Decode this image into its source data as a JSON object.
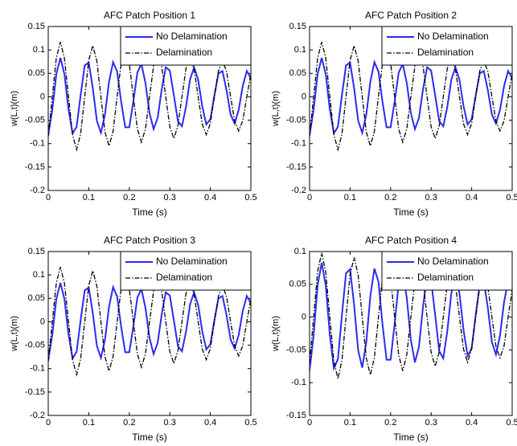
{
  "chart_data": [
    {
      "type": "line",
      "title": "AFC Patch Position 1",
      "xlabel": "Time (s)",
      "ylabel": "w(L,t)(m)",
      "grid": false,
      "legend": "upper right",
      "x": [
        0,
        0.01,
        0.02,
        0.03,
        0.04,
        0.05,
        0.06,
        0.07,
        0.08,
        0.09,
        0.1,
        0.11,
        0.12,
        0.13,
        0.14,
        0.15,
        0.16,
        0.17,
        0.18,
        0.19,
        0.2,
        0.21,
        0.22,
        0.23,
        0.24,
        0.25,
        0.26,
        0.27,
        0.28,
        0.29,
        0.3,
        0.31,
        0.32,
        0.33,
        0.34,
        0.35,
        0.36,
        0.37,
        0.38,
        0.39,
        0.4,
        0.41,
        0.42,
        0.43,
        0.44,
        0.45,
        0.46,
        0.47,
        0.48,
        0.49,
        0.5
      ],
      "xlim": [
        0,
        0.5
      ],
      "xticks": [
        0,
        0.1,
        0.2,
        0.3,
        0.4,
        0.5
      ],
      "ylim": [
        -0.2,
        0.15
      ],
      "yticks": [
        -0.2,
        -0.15,
        -0.1,
        -0.05,
        0,
        0.05,
        0.1,
        0.15
      ],
      "series": [
        {
          "name": "No Delamination",
          "color": "#2b2bef",
          "linestyle": "solid",
          "values": [
            -0.082,
            -0.028,
            0.049,
            0.083,
            0.048,
            -0.027,
            -0.078,
            -0.064,
            0.004,
            0.067,
            0.073,
            0.018,
            -0.051,
            -0.077,
            -0.038,
            0.032,
            0.074,
            0.054,
            -0.011,
            -0.065,
            -0.065,
            -0.01,
            0.052,
            0.07,
            0.029,
            -0.035,
            -0.069,
            -0.045,
            0.016,
            0.063,
            0.056,
            0.003,
            -0.052,
            -0.063,
            -0.021,
            0.037,
            0.063,
            0.036,
            -0.02,
            -0.059,
            -0.048,
            0.003,
            0.05,
            0.055,
            0.014,
            -0.038,
            -0.057,
            -0.028,
            0.023,
            0.055,
            0.04
          ]
        },
        {
          "name": "Delamination",
          "color": "#000000",
          "linestyle": "dashdot",
          "values": [
            -0.085,
            0,
            0.083,
            0.117,
            0.082,
            0,
            -0.081,
            -0.113,
            -0.079,
            0,
            0.078,
            0.109,
            0.076,
            0,
            -0.075,
            -0.105,
            -0.074,
            0,
            0.072,
            0.101,
            0.071,
            0,
            -0.069,
            -0.097,
            -0.068,
            0,
            0.066,
            0.093,
            0.065,
            0,
            -0.064,
            -0.089,
            -0.062,
            0,
            0.061,
            0.085,
            0.059,
            0,
            -0.058,
            -0.081,
            -0.057,
            0,
            0.055,
            0.077,
            0.054,
            0,
            -0.052,
            -0.073,
            -0.051,
            0,
            0.049
          ]
        }
      ]
    },
    {
      "type": "line",
      "title": "AFC Patch Position 2",
      "xlabel": "Time (s)",
      "ylabel": "w(L,t)(m)",
      "grid": false,
      "legend": "upper right",
      "x": [
        0,
        0.01,
        0.02,
        0.03,
        0.04,
        0.05,
        0.06,
        0.07,
        0.08,
        0.09,
        0.1,
        0.11,
        0.12,
        0.13,
        0.14,
        0.15,
        0.16,
        0.17,
        0.18,
        0.19,
        0.2,
        0.21,
        0.22,
        0.23,
        0.24,
        0.25,
        0.26,
        0.27,
        0.28,
        0.29,
        0.3,
        0.31,
        0.32,
        0.33,
        0.34,
        0.35,
        0.36,
        0.37,
        0.38,
        0.39,
        0.4,
        0.41,
        0.42,
        0.43,
        0.44,
        0.45,
        0.46,
        0.47,
        0.48,
        0.49,
        0.5
      ],
      "xlim": [
        0,
        0.5
      ],
      "xticks": [
        0,
        0.1,
        0.2,
        0.3,
        0.4,
        0.5
      ],
      "ylim": [
        -0.2,
        0.15
      ],
      "yticks": [
        -0.2,
        -0.15,
        -0.1,
        -0.05,
        0,
        0.05,
        0.1,
        0.15
      ],
      "series": [
        {
          "name": "No Delamination",
          "color": "#2b2bef",
          "linestyle": "solid",
          "values": [
            -0.082,
            -0.028,
            0.049,
            0.083,
            0.048,
            -0.027,
            -0.078,
            -0.064,
            0.004,
            0.067,
            0.073,
            0.018,
            -0.051,
            -0.077,
            -0.038,
            0.032,
            0.074,
            0.054,
            -0.011,
            -0.065,
            -0.065,
            -0.01,
            0.052,
            0.07,
            0.029,
            -0.035,
            -0.069,
            -0.045,
            0.016,
            0.063,
            0.056,
            0.003,
            -0.052,
            -0.063,
            -0.021,
            0.037,
            0.063,
            0.036,
            -0.02,
            -0.059,
            -0.048,
            0.003,
            0.05,
            0.055,
            0.014,
            -0.038,
            -0.057,
            -0.028,
            0.023,
            0.055,
            0.04
          ]
        },
        {
          "name": "Delamination",
          "color": "#000000",
          "linestyle": "dashdot",
          "values": [
            -0.085,
            0,
            0.083,
            0.117,
            0.082,
            0,
            -0.081,
            -0.113,
            -0.079,
            0,
            0.078,
            0.109,
            0.076,
            0,
            -0.075,
            -0.105,
            -0.074,
            0,
            0.072,
            0.101,
            0.071,
            0,
            -0.069,
            -0.097,
            -0.068,
            0,
            0.066,
            0.093,
            0.065,
            0,
            -0.064,
            -0.089,
            -0.062,
            0,
            0.061,
            0.085,
            0.059,
            0,
            -0.058,
            -0.081,
            -0.057,
            0,
            0.055,
            0.077,
            0.054,
            0,
            -0.052,
            -0.073,
            -0.051,
            0,
            0.049
          ]
        }
      ]
    },
    {
      "type": "line",
      "title": "AFC Patch Position 3",
      "xlabel": "Time (s)",
      "ylabel": "w(L,t)(m)",
      "grid": false,
      "legend": "upper right",
      "x": [
        0,
        0.01,
        0.02,
        0.03,
        0.04,
        0.05,
        0.06,
        0.07,
        0.08,
        0.09,
        0.1,
        0.11,
        0.12,
        0.13,
        0.14,
        0.15,
        0.16,
        0.17,
        0.18,
        0.19,
        0.2,
        0.21,
        0.22,
        0.23,
        0.24,
        0.25,
        0.26,
        0.27,
        0.28,
        0.29,
        0.3,
        0.31,
        0.32,
        0.33,
        0.34,
        0.35,
        0.36,
        0.37,
        0.38,
        0.39,
        0.4,
        0.41,
        0.42,
        0.43,
        0.44,
        0.45,
        0.46,
        0.47,
        0.48,
        0.49,
        0.5
      ],
      "xlim": [
        0,
        0.5
      ],
      "xticks": [
        0,
        0.1,
        0.2,
        0.3,
        0.4,
        0.5
      ],
      "ylim": [
        -0.2,
        0.15
      ],
      "yticks": [
        -0.2,
        -0.15,
        -0.1,
        -0.05,
        0,
        0.05,
        0.1,
        0.15
      ],
      "series": [
        {
          "name": "No Delamination",
          "color": "#2b2bef",
          "linestyle": "solid",
          "values": [
            -0.082,
            -0.028,
            0.049,
            0.083,
            0.048,
            -0.027,
            -0.078,
            -0.064,
            0.004,
            0.067,
            0.073,
            0.018,
            -0.051,
            -0.077,
            -0.038,
            0.032,
            0.074,
            0.054,
            -0.011,
            -0.065,
            -0.065,
            -0.01,
            0.052,
            0.07,
            0.029,
            -0.035,
            -0.069,
            -0.045,
            0.016,
            0.063,
            0.056,
            0.003,
            -0.052,
            -0.063,
            -0.021,
            0.037,
            0.063,
            0.036,
            -0.02,
            -0.059,
            -0.048,
            0.003,
            0.05,
            0.055,
            0.014,
            -0.038,
            -0.057,
            -0.028,
            0.023,
            0.055,
            0.04
          ]
        },
        {
          "name": "Delamination",
          "color": "#000000",
          "linestyle": "dashdot",
          "values": [
            -0.085,
            0,
            0.083,
            0.117,
            0.082,
            0,
            -0.081,
            -0.113,
            -0.079,
            0,
            0.078,
            0.109,
            0.076,
            0,
            -0.075,
            -0.105,
            -0.074,
            0,
            0.072,
            0.101,
            0.071,
            0,
            -0.069,
            -0.097,
            -0.068,
            0,
            0.066,
            0.093,
            0.065,
            0,
            -0.064,
            -0.089,
            -0.062,
            0,
            0.061,
            0.085,
            0.059,
            0,
            -0.058,
            -0.081,
            -0.057,
            0,
            0.055,
            0.077,
            0.054,
            0,
            -0.052,
            -0.073,
            -0.051,
            0,
            0.049
          ]
        }
      ]
    },
    {
      "type": "line",
      "title": "AFC Patch Position 4",
      "xlabel": "Time (s)",
      "ylabel": "w(L,t)(m)",
      "grid": false,
      "legend": "upper right",
      "x": [
        0,
        0.01,
        0.02,
        0.03,
        0.04,
        0.05,
        0.06,
        0.07,
        0.08,
        0.09,
        0.1,
        0.11,
        0.12,
        0.13,
        0.14,
        0.15,
        0.16,
        0.17,
        0.18,
        0.19,
        0.2,
        0.21,
        0.22,
        0.23,
        0.24,
        0.25,
        0.26,
        0.27,
        0.28,
        0.29,
        0.3,
        0.31,
        0.32,
        0.33,
        0.34,
        0.35,
        0.36,
        0.37,
        0.38,
        0.39,
        0.4,
        0.41,
        0.42,
        0.43,
        0.44,
        0.45,
        0.46,
        0.47,
        0.48,
        0.49,
        0.5
      ],
      "xlim": [
        0,
        0.5
      ],
      "xticks": [
        0,
        0.1,
        0.2,
        0.3,
        0.4,
        0.5
      ],
      "ylim": [
        -0.15,
        0.1
      ],
      "yticks": [
        -0.15,
        -0.1,
        -0.05,
        0,
        0.05,
        0.1
      ],
      "series": [
        {
          "name": "No Delamination",
          "color": "#2b2bef",
          "linestyle": "solid",
          "values": [
            -0.082,
            -0.028,
            0.049,
            0.083,
            0.048,
            -0.027,
            -0.078,
            -0.064,
            0.004,
            0.067,
            0.073,
            0.018,
            -0.051,
            -0.077,
            -0.038,
            0.032,
            0.074,
            0.054,
            -0.011,
            -0.065,
            -0.065,
            -0.01,
            0.052,
            0.07,
            0.029,
            -0.035,
            -0.069,
            -0.045,
            0.016,
            0.063,
            0.056,
            0.003,
            -0.052,
            -0.063,
            -0.021,
            0.037,
            0.063,
            0.036,
            -0.02,
            -0.059,
            -0.048,
            0.003,
            0.05,
            0.055,
            0.014,
            -0.038,
            -0.057,
            -0.028,
            0.023,
            0.055,
            0.04
          ]
        },
        {
          "name": "Delamination",
          "color": "#000000",
          "linestyle": "dashdot",
          "values": [
            -0.071,
            0,
            0.07,
            0.098,
            0.068,
            0,
            -0.067,
            -0.094,
            -0.066,
            0,
            0.065,
            0.091,
            0.064,
            0,
            -0.063,
            -0.088,
            -0.062,
            0,
            0.061,
            0.085,
            0.059,
            0,
            -0.058,
            -0.082,
            -0.057,
            0,
            0.056,
            0.078,
            0.055,
            0,
            -0.054,
            -0.075,
            -0.053,
            0,
            0.051,
            0.072,
            0.05,
            0,
            -0.049,
            -0.069,
            -0.048,
            0,
            0.047,
            0.066,
            0.046,
            0,
            -0.045,
            -0.062,
            -0.044,
            0,
            0.042
          ]
        }
      ]
    }
  ]
}
